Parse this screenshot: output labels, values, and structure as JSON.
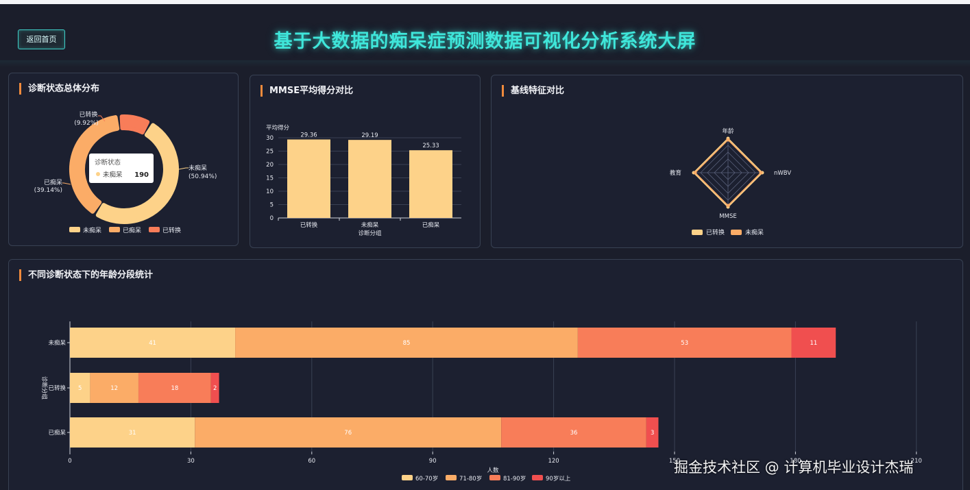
{
  "header": {
    "back_label": "返回首页",
    "title": "基于大数据的痴呆症预测数据可视化分析系统大屏"
  },
  "colors": {
    "accent": "#3fe6da",
    "c1": "#fdd289",
    "c2": "#fbac67",
    "c3": "#f87d59",
    "c4": "#f04f4f"
  },
  "panels": {
    "pie": {
      "title": "诊断状态总体分布"
    },
    "mmse": {
      "title": "MMSE平均得分对比"
    },
    "radar": {
      "title": "基线特征对比"
    },
    "age": {
      "title": "不同诊断状态下的年龄分段统计"
    }
  },
  "chart_data": [
    {
      "type": "pie",
      "title": "诊断状态总体分布",
      "slices": [
        {
          "name": "未痴呆",
          "percent": 50.94,
          "value": 190
        },
        {
          "name": "已痴呆",
          "percent": 39.14
        },
        {
          "name": "已转换",
          "percent": 9.92
        }
      ],
      "labels": {
        "unconverted": "未痴呆",
        "unconverted_pct": "(50.94%)",
        "demented": "已痴呆",
        "demented_pct": "(39.14%)",
        "converted": "已转换",
        "converted_pct": "(9.92%)"
      },
      "tooltip": {
        "title": "诊断状态",
        "name": "未痴呆",
        "value": "190"
      },
      "legend": [
        "未痴呆",
        "已痴呆",
        "已转换"
      ]
    },
    {
      "type": "bar",
      "title": "MMSE平均得分对比",
      "categories": [
        "已转换",
        "未痴呆",
        "已痴呆"
      ],
      "values": [
        29.36,
        29.19,
        25.33
      ],
      "ylabel": "平均得分",
      "xlabel": "诊断分组",
      "ylim": [
        0,
        30
      ],
      "yticks": [
        0,
        5,
        10,
        15,
        20,
        25,
        30
      ]
    },
    {
      "type": "radar",
      "title": "基线特征对比",
      "indicators": [
        "年龄",
        "nWBV",
        "MMSE",
        "教育"
      ],
      "series": [
        {
          "name": "已转换",
          "values": [
            1.0,
            1.0,
            1.0,
            1.0
          ]
        },
        {
          "name": "未痴呆",
          "values": [
            0.96,
            0.96,
            0.96,
            0.96
          ]
        }
      ],
      "legend": [
        "已转换",
        "未痴呆"
      ]
    },
    {
      "type": "bar",
      "orientation": "horizontal",
      "stacked": true,
      "title": "不同诊断状态下的年龄分段统计",
      "categories": [
        "未痴呆",
        "已转换",
        "已痴呆"
      ],
      "series": [
        {
          "name": "60-70岁",
          "values": [
            41,
            5,
            31
          ]
        },
        {
          "name": "71-80岁",
          "values": [
            85,
            12,
            76
          ]
        },
        {
          "name": "81-90岁",
          "values": [
            53,
            18,
            36
          ]
        },
        {
          "name": "90岁以上",
          "values": [
            11,
            2,
            3
          ]
        }
      ],
      "xlabel": "人数",
      "ylabel": "诊断分组",
      "xticks": [
        0,
        30,
        60,
        90,
        120,
        150,
        180,
        210
      ],
      "xlim": [
        0,
        210
      ]
    }
  ],
  "watermark": "掘金技术社区 @ 计算机毕业设计杰瑞"
}
